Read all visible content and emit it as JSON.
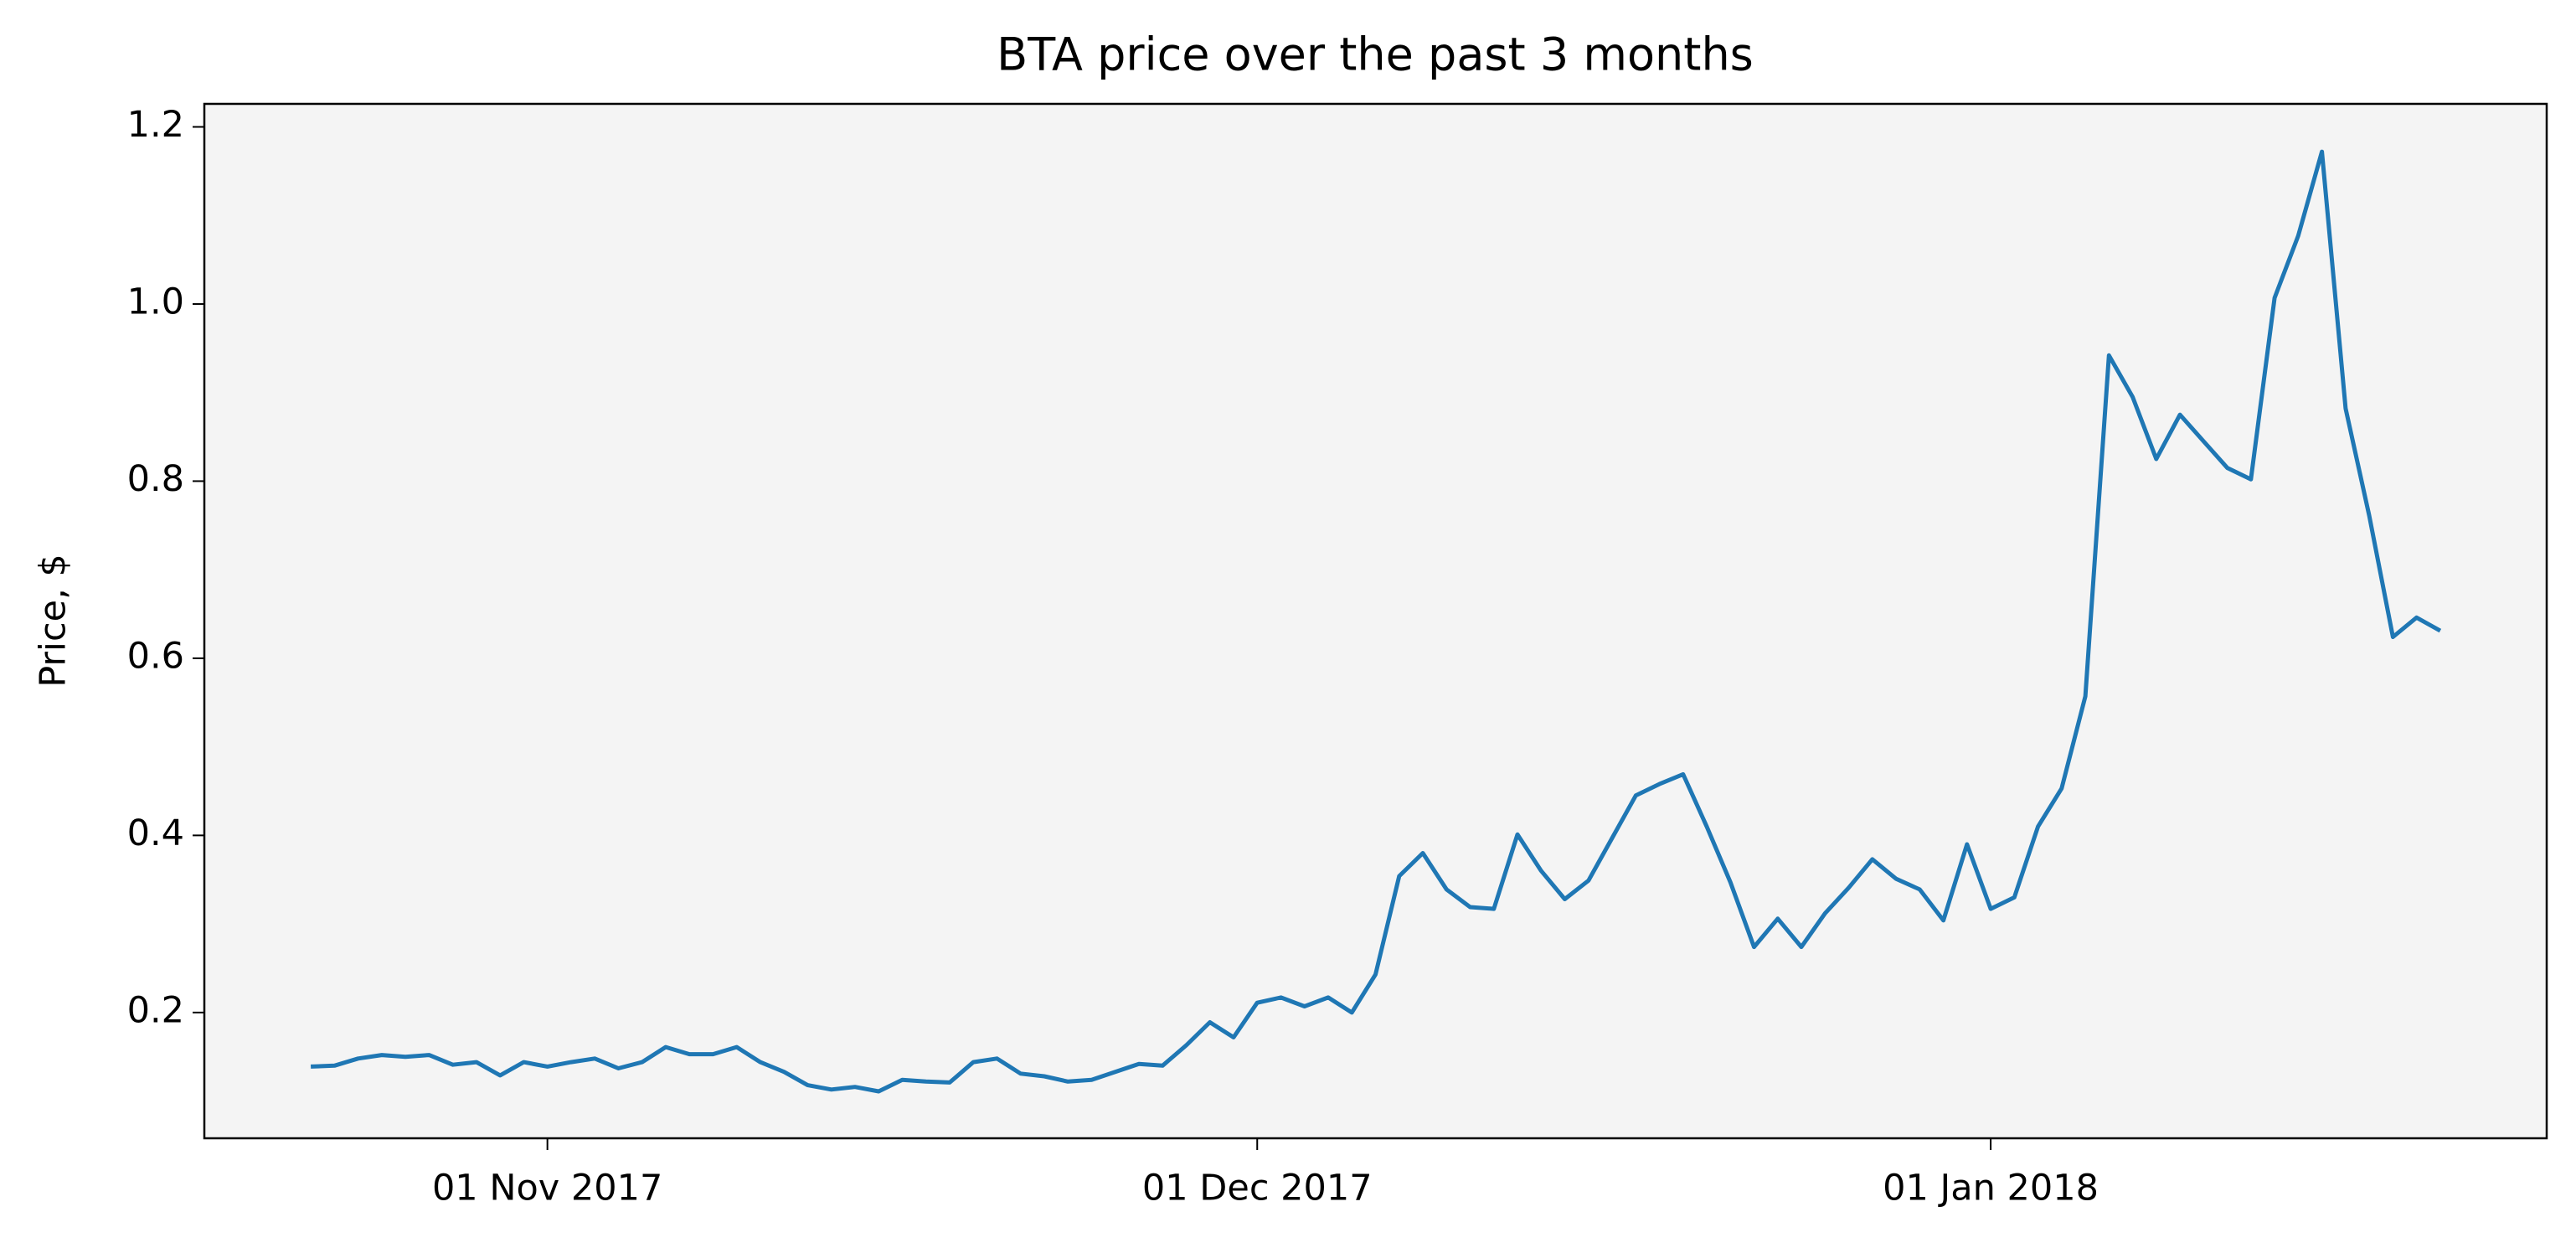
{
  "chart_data": {
    "type": "line",
    "title": "BTA price over the past 3 months",
    "y_label": "Price, $",
    "x": [
      "2017-10-22",
      "2017-10-23",
      "2017-10-24",
      "2017-10-25",
      "2017-10-26",
      "2017-10-27",
      "2017-10-28",
      "2017-10-29",
      "2017-10-30",
      "2017-10-31",
      "2017-11-01",
      "2017-11-02",
      "2017-11-03",
      "2017-11-04",
      "2017-11-05",
      "2017-11-06",
      "2017-11-07",
      "2017-11-08",
      "2017-11-09",
      "2017-11-10",
      "2017-11-11",
      "2017-11-12",
      "2017-11-13",
      "2017-11-14",
      "2017-11-15",
      "2017-11-16",
      "2017-11-17",
      "2017-11-18",
      "2017-11-19",
      "2017-11-20",
      "2017-11-21",
      "2017-11-22",
      "2017-11-23",
      "2017-11-24",
      "2017-11-25",
      "2017-11-26",
      "2017-11-27",
      "2017-11-28",
      "2017-11-29",
      "2017-11-30",
      "2017-12-01",
      "2017-12-02",
      "2017-12-03",
      "2017-12-04",
      "2017-12-05",
      "2017-12-06",
      "2017-12-07",
      "2017-12-08",
      "2017-12-09",
      "2017-12-10",
      "2017-12-11",
      "2017-12-12",
      "2017-12-13",
      "2017-12-14",
      "2017-12-15",
      "2017-12-16",
      "2017-12-17",
      "2017-12-18",
      "2017-12-19",
      "2017-12-20",
      "2017-12-21",
      "2017-12-22",
      "2017-12-23",
      "2017-12-24",
      "2017-12-25",
      "2017-12-26",
      "2017-12-27",
      "2017-12-28",
      "2017-12-29",
      "2017-12-30",
      "2017-12-31",
      "2018-01-01",
      "2018-01-02",
      "2018-01-03",
      "2018-01-04",
      "2018-01-05",
      "2018-01-06",
      "2018-01-07",
      "2018-01-08",
      "2018-01-09",
      "2018-01-10",
      "2018-01-11",
      "2018-01-12",
      "2018-01-13",
      "2018-01-14",
      "2018-01-15",
      "2018-01-16",
      "2018-01-17",
      "2018-01-18",
      "2018-01-19",
      "2018-01-20"
    ],
    "series": [
      {
        "name": "BTA",
        "color": "#1f77b4",
        "values": [
          0.139,
          0.14,
          0.148,
          0.152,
          0.15,
          0.152,
          0.141,
          0.144,
          0.129,
          0.144,
          0.139,
          0.144,
          0.148,
          0.137,
          0.144,
          0.161,
          0.153,
          0.153,
          0.161,
          0.144,
          0.133,
          0.118,
          0.113,
          0.116,
          0.111,
          0.124,
          0.122,
          0.121,
          0.144,
          0.148,
          0.131,
          0.128,
          0.122,
          0.124,
          0.133,
          0.142,
          0.14,
          0.163,
          0.189,
          0.172,
          0.211,
          0.217,
          0.207,
          0.217,
          0.2,
          0.243,
          0.354,
          0.38,
          0.339,
          0.319,
          0.317,
          0.401,
          0.36,
          0.328,
          0.349,
          0.397,
          0.445,
          0.458,
          0.469,
          0.41,
          0.347,
          0.274,
          0.306,
          0.274,
          0.312,
          0.341,
          0.373,
          0.351,
          0.339,
          0.304,
          0.39,
          0.317,
          0.33,
          0.41,
          0.453,
          0.557,
          0.942,
          0.895,
          0.825,
          0.875,
          0.845,
          0.815,
          0.802,
          1.007,
          1.077,
          1.172,
          0.882,
          0.761,
          0.624,
          0.646,
          0.631
        ]
      }
    ],
    "xlim": [
      "2017-10-17T12:00",
      "2018-01-24T12:00"
    ],
    "xticks": [
      {
        "value": "2017-11-01",
        "label": "01 Nov 2017"
      },
      {
        "value": "2017-12-01",
        "label": "01 Dec 2017"
      },
      {
        "value": "2018-01-01",
        "label": "01 Jan 2018"
      }
    ],
    "ylim": [
      0.058,
      1.226
    ],
    "yticks": [
      0.2,
      0.4,
      0.6,
      0.8,
      {
        "value": 1.0,
        "label": "1.0"
      },
      1.2
    ],
    "grid": false
  }
}
